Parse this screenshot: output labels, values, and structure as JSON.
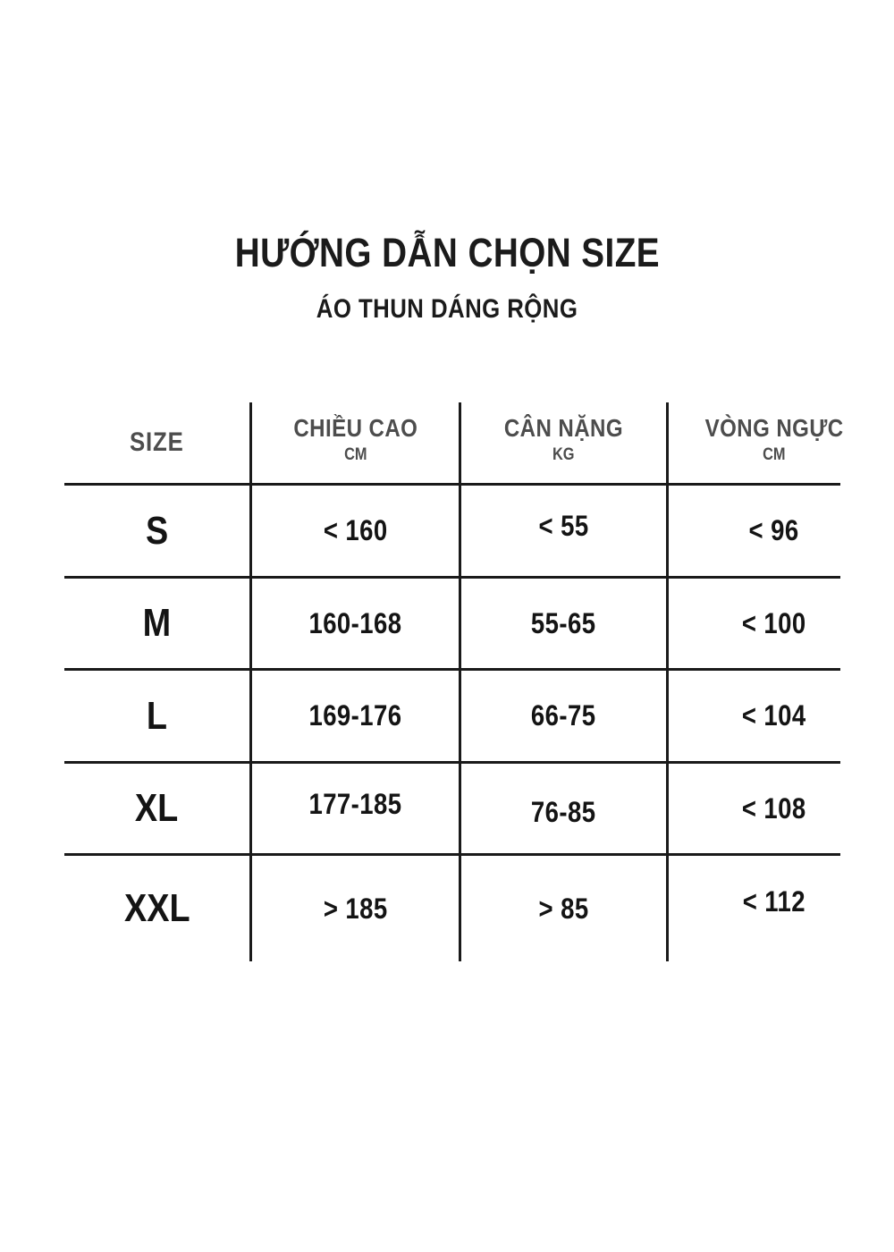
{
  "page": {
    "title": "HƯỚNG DẪN CHỌN SIZE",
    "subtitle": "ÁO THUN DÁNG RỘNG"
  },
  "chart_data": {
    "type": "table",
    "title": "HƯỚNG DẪN CHỌN SIZE",
    "subtitle": "ÁO THUN DÁNG RỘNG",
    "header": {
      "size": "SIZE",
      "cols": [
        {
          "label": "CHIỀU CAO",
          "unit": "CM"
        },
        {
          "label": "CÂN NẶNG",
          "unit": "KG"
        },
        {
          "label": "VÒNG NGỰC",
          "unit": "CM"
        }
      ]
    },
    "rows": [
      [
        "S",
        "< 160",
        "< 55",
        "< 96"
      ],
      [
        "M",
        "160-168",
        "55-65",
        "< 100"
      ],
      [
        "L",
        "169-176",
        "66-75",
        "< 104"
      ],
      [
        "XL",
        "177-185",
        "76-85",
        "< 108"
      ],
      [
        "XXL",
        "> 185",
        "> 85",
        "< 112"
      ]
    ],
    "layout_hints": {
      "grid_lines": "internal-only",
      "outer_border": false
    },
    "colors": {
      "line": "#1a1a1a",
      "header_text": "#4d4d4d",
      "value_text": "#141414",
      "background": "#ffffff"
    }
  }
}
